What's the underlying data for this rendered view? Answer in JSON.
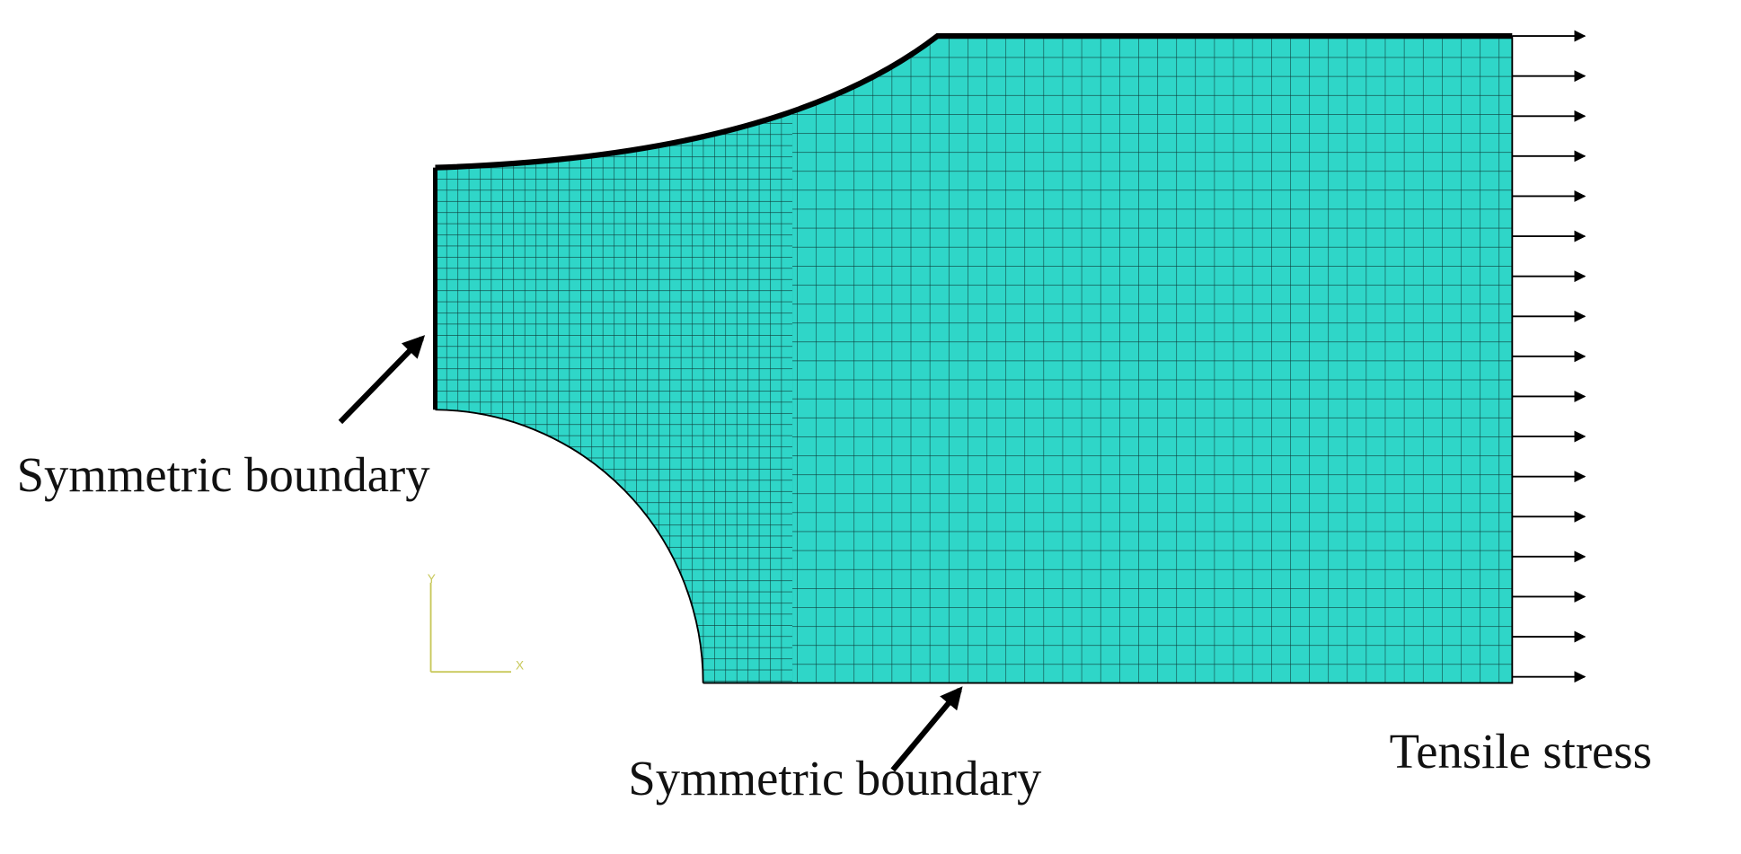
{
  "labels": {
    "left_boundary": "Symmetric boundary",
    "bottom_boundary": "Symmetric boundary",
    "load": "Tensile stress"
  },
  "axes": {
    "y": "Y",
    "x": "X"
  }
}
